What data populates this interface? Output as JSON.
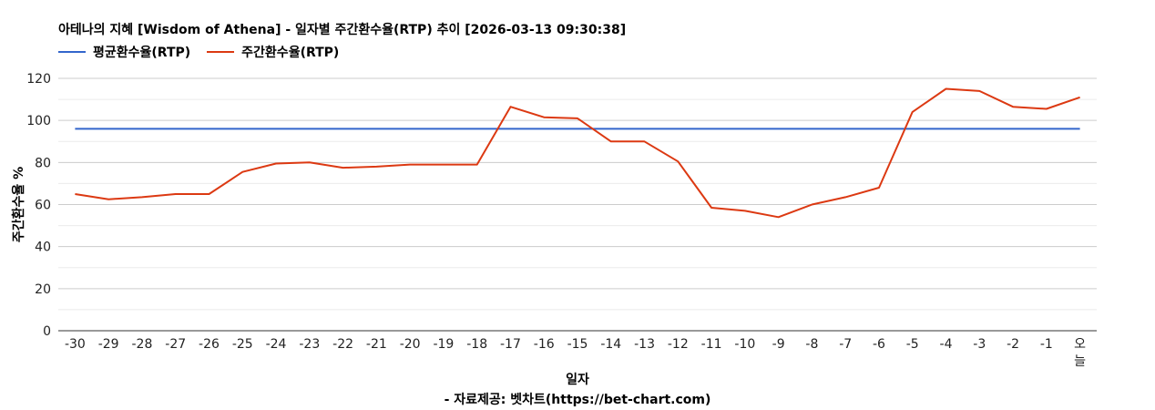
{
  "chart_data": {
    "type": "line",
    "title": "아테나의 지혜 [Wisdom of Athena] - 일자별 주간환수율(RTP) 추이 [2026-03-13 09:30:38]",
    "xlabel": "일자",
    "ylabel": "주간환수율 %",
    "ylim": [
      0,
      120
    ],
    "yticks": [
      0,
      20,
      40,
      60,
      80,
      100,
      120
    ],
    "grid": true,
    "legend_position": "top-left",
    "categories": [
      "-30",
      "-29",
      "-28",
      "-27",
      "-26",
      "-25",
      "-24",
      "-23",
      "-22",
      "-21",
      "-20",
      "-19",
      "-18",
      "-17",
      "-16",
      "-15",
      "-14",
      "-13",
      "-12",
      "-11",
      "-10",
      "-9",
      "-8",
      "-7",
      "-6",
      "-5",
      "-4",
      "-3",
      "-2",
      "-1",
      "오늘"
    ],
    "series": [
      {
        "name": "평균환수율(RTP)",
        "color": "#3366cc",
        "values": [
          96,
          96,
          96,
          96,
          96,
          96,
          96,
          96,
          96,
          96,
          96,
          96,
          96,
          96,
          96,
          96,
          96,
          96,
          96,
          96,
          96,
          96,
          96,
          96,
          96,
          96,
          96,
          96,
          96,
          96,
          96
        ]
      },
      {
        "name": "주간환수율(RTP)",
        "color": "#dc3912",
        "values": [
          65,
          62.5,
          63.5,
          65,
          65,
          75.5,
          79.5,
          80,
          77.5,
          78,
          79,
          79,
          79,
          106.5,
          101.5,
          101,
          90,
          90,
          80.5,
          58.5,
          57,
          54,
          60,
          63.5,
          68,
          104,
          115,
          114,
          106.5,
          105.5,
          111
        ]
      }
    ]
  },
  "footer": "- 자료제공: 벳차트(https://bet-chart.com)"
}
